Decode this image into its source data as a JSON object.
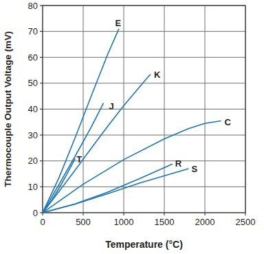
{
  "chart_data": {
    "type": "line",
    "x_label": "Temperature (°C)",
    "y_label": "Thermocouple Output Voltage (mV)",
    "xlim": [
      0,
      2500
    ],
    "xticks": [
      0,
      500,
      1000,
      1500,
      2000,
      2500
    ],
    "ylim": [
      0,
      80
    ],
    "yticks": [
      0,
      10,
      20,
      30,
      40,
      50,
      60,
      70,
      80
    ],
    "grid": true,
    "series": [
      {
        "name": "E",
        "color": "#1b75bc",
        "x": [
          0,
          200,
          400,
          600,
          800,
          940
        ],
        "values": [
          0,
          13.4,
          28.9,
          45.1,
          61.0,
          71
        ]
      },
      {
        "name": "J",
        "color": "#1b75bc",
        "x": [
          0,
          200,
          400,
          600,
          750
        ],
        "values": [
          0,
          10.8,
          21.8,
          33.1,
          42.3
        ]
      },
      {
        "name": "K",
        "color": "#1b75bc",
        "x": [
          0,
          200,
          400,
          600,
          800,
          1000,
          1200,
          1330
        ],
        "values": [
          0,
          8.1,
          16.4,
          24.9,
          33.3,
          41.3,
          48.8,
          53.5
        ]
      },
      {
        "name": "T",
        "color": "#1b75bc",
        "x": [
          0,
          100,
          200,
          300,
          400
        ],
        "values": [
          0,
          4.3,
          9.3,
          14.9,
          20.9
        ]
      },
      {
        "name": "C",
        "color": "#1b75bc",
        "x": [
          0,
          250,
          500,
          1000,
          1500,
          1800,
          2000,
          2200
        ],
        "values": [
          0,
          5.5,
          11,
          20.5,
          28.5,
          32.5,
          34.5,
          35.5
        ]
      },
      {
        "name": "R",
        "color": "#1b75bc",
        "x": [
          0,
          400,
          800,
          1200,
          1600
        ],
        "values": [
          0,
          3.4,
          7.9,
          13.2,
          18.8
        ]
      },
      {
        "name": "S",
        "color": "#1b75bc",
        "x": [
          0,
          400,
          800,
          1200,
          1800
        ],
        "values": [
          0,
          3.3,
          7.3,
          11.5,
          17
        ]
      }
    ]
  }
}
